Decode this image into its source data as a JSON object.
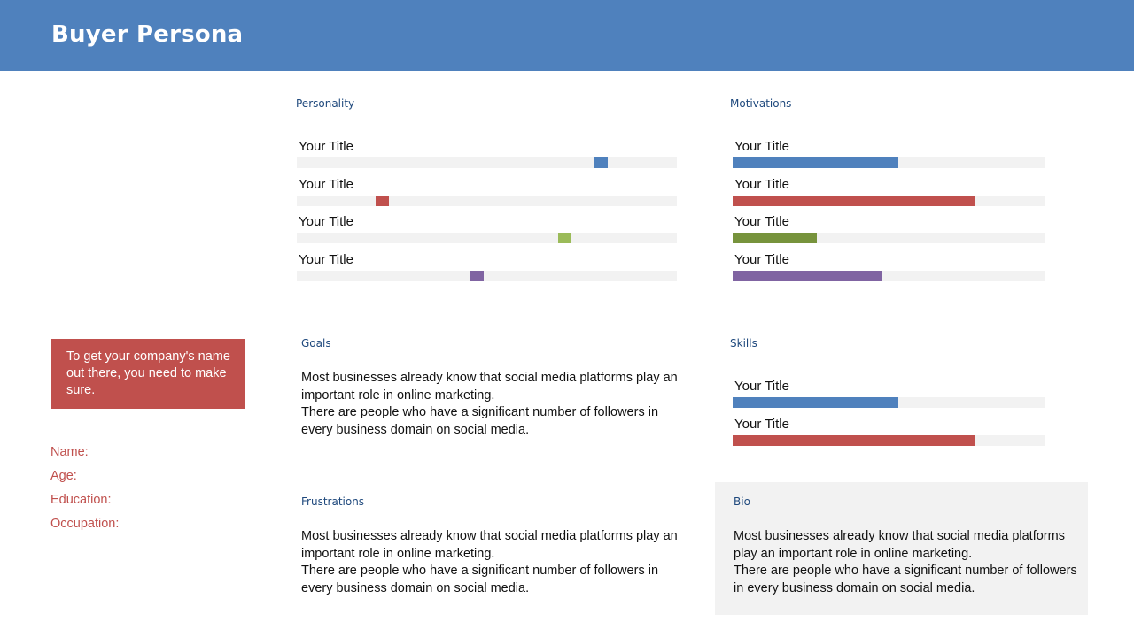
{
  "header": {
    "title": "Buyer Persona"
  },
  "personality": {
    "label": "Personality",
    "items": [
      {
        "title": "Your Title",
        "value": 0.8,
        "color": "#4F81BD"
      },
      {
        "title": "Your Title",
        "value": 0.225,
        "color": "#C0504D"
      },
      {
        "title": "Your Title",
        "value": 0.705,
        "color": "#9BBB59"
      },
      {
        "title": "Your Title",
        "value": 0.475,
        "color": "#8064A2"
      }
    ]
  },
  "motivations": {
    "label": "Motivations",
    "items": [
      {
        "title": "Your Title",
        "value": 0.53,
        "color": "#4F81BD"
      },
      {
        "title": "Your Title",
        "value": 0.775,
        "color": "#C0504D"
      },
      {
        "title": "Your Title",
        "value": 0.27,
        "color": "#77933C"
      },
      {
        "title": "Your Title",
        "value": 0.48,
        "color": "#8064A2"
      }
    ]
  },
  "skills": {
    "label": "Skills",
    "items": [
      {
        "title": "Your Title",
        "value": 0.53,
        "color": "#4F81BD"
      },
      {
        "title": "Your Title",
        "value": 0.775,
        "color": "#C0504D"
      }
    ]
  },
  "callout": {
    "text": "To get your company's name out there, you need to make sure."
  },
  "profile": {
    "name": "Name:",
    "age": "Age:",
    "education": "Education:",
    "occupation": "Occupation:"
  },
  "goals": {
    "label": "Goals",
    "line1": "Most businesses already know that social media platforms play an important role in online marketing.",
    "line2": "There are people who have a significant number of followers in every business domain on social media."
  },
  "frustrations": {
    "label": "Frustrations",
    "line1": "Most businesses already know that social media platforms play an important role in online marketing.",
    "line2": "There are people who have a significant number of followers in every business domain on social media."
  },
  "bio": {
    "label": "Bio",
    "line1": "Most businesses already know that social media platforms play an important role in online marketing.",
    "line2": "There are people who have a significant number of followers in every business domain on social media."
  }
}
